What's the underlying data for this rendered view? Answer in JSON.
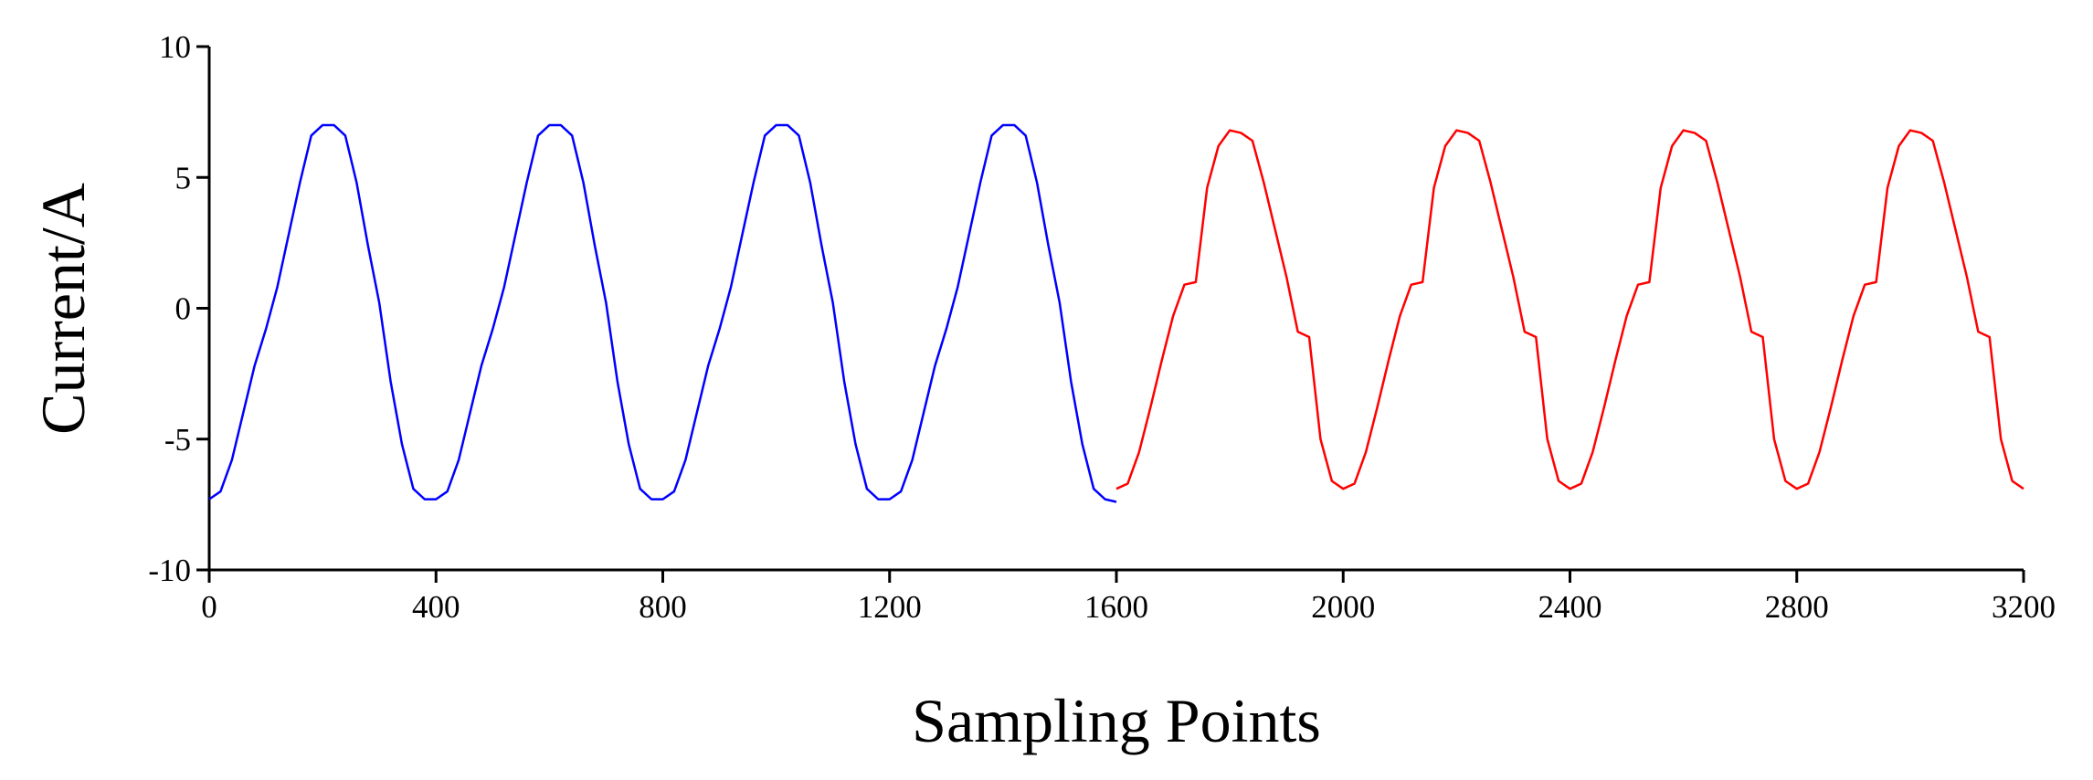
{
  "chart_data": {
    "type": "line",
    "xlabel": "Sampling Points",
    "ylabel": "Current/A",
    "xlim": [
      0,
      3200
    ],
    "xticks": [
      0,
      400,
      800,
      1200,
      1600,
      2000,
      2400,
      2800,
      3200
    ],
    "ylim": [
      -10,
      10
    ],
    "yticks": [
      -10,
      -5,
      0,
      5,
      10
    ],
    "series": [
      {
        "color": "#0000ff",
        "x": [
          0,
          20,
          40,
          60,
          80,
          100,
          120,
          140,
          160,
          180,
          200,
          220,
          240,
          260,
          280,
          300,
          320,
          340,
          360,
          380,
          400,
          420,
          440,
          460,
          480,
          500,
          520,
          540,
          560,
          580,
          600,
          620,
          640,
          660,
          680,
          700,
          720,
          740,
          760,
          780,
          800,
          820,
          840,
          860,
          880,
          900,
          920,
          940,
          960,
          980,
          1000,
          1020,
          1040,
          1060,
          1080,
          1100,
          1120,
          1140,
          1160,
          1180,
          1200,
          1220,
          1240,
          1260,
          1280,
          1300,
          1320,
          1340,
          1360,
          1380,
          1400,
          1420,
          1440,
          1460,
          1480,
          1500,
          1520,
          1540,
          1560,
          1580,
          1600
        ],
        "values": [
          -7.3,
          -7.0,
          -5.8,
          -4.0,
          -2.2,
          -0.8,
          0.8,
          2.8,
          4.8,
          6.6,
          7.0,
          7.0,
          6.6,
          4.8,
          2.4,
          0.2,
          -2.8,
          -5.2,
          -6.9,
          -7.3,
          -7.3,
          -7.0,
          -5.8,
          -4.0,
          -2.2,
          -0.8,
          0.8,
          2.8,
          4.8,
          6.6,
          7.0,
          7.0,
          6.6,
          4.8,
          2.4,
          0.2,
          -2.8,
          -5.2,
          -6.9,
          -7.3,
          -7.3,
          -7.0,
          -5.8,
          -4.0,
          -2.2,
          -0.8,
          0.8,
          2.8,
          4.8,
          6.6,
          7.0,
          7.0,
          6.6,
          4.8,
          2.4,
          0.2,
          -2.8,
          -5.2,
          -6.9,
          -7.3,
          -7.3,
          -7.0,
          -5.8,
          -4.0,
          -2.2,
          -0.8,
          0.8,
          2.8,
          4.8,
          6.6,
          7.0,
          7.0,
          6.6,
          4.8,
          2.4,
          0.2,
          -2.8,
          -5.2,
          -6.9,
          -7.3,
          -7.4
        ]
      },
      {
        "color": "#ff0000",
        "x": [
          1600,
          1620,
          1640,
          1660,
          1680,
          1700,
          1720,
          1740,
          1760,
          1780,
          1800,
          1820,
          1840,
          1860,
          1880,
          1900,
          1920,
          1940,
          1960,
          1980,
          2000,
          2020,
          2040,
          2060,
          2080,
          2100,
          2120,
          2140,
          2160,
          2180,
          2200,
          2220,
          2240,
          2260,
          2280,
          2300,
          2320,
          2340,
          2360,
          2380,
          2400,
          2420,
          2440,
          2460,
          2480,
          2500,
          2520,
          2540,
          2560,
          2580,
          2600,
          2620,
          2640,
          2660,
          2680,
          2700,
          2720,
          2740,
          2760,
          2780,
          2800,
          2820,
          2840,
          2860,
          2880,
          2900,
          2920,
          2940,
          2960,
          2980,
          3000,
          3020,
          3040,
          3060,
          3080,
          3100,
          3120,
          3140,
          3160,
          3180,
          3200
        ],
        "values": [
          -6.9,
          -6.7,
          -5.5,
          -3.8,
          -2.0,
          -0.3,
          0.9,
          1.0,
          4.6,
          6.2,
          6.8,
          6.7,
          6.4,
          4.8,
          3.0,
          1.2,
          -0.9,
          -1.1,
          -5.0,
          -6.6,
          -6.9,
          -6.7,
          -5.5,
          -3.8,
          -2.0,
          -0.3,
          0.9,
          1.0,
          4.6,
          6.2,
          6.8,
          6.7,
          6.4,
          4.8,
          3.0,
          1.2,
          -0.9,
          -1.1,
          -5.0,
          -6.6,
          -6.9,
          -6.7,
          -5.5,
          -3.8,
          -2.0,
          -0.3,
          0.9,
          1.0,
          4.6,
          6.2,
          6.8,
          6.7,
          6.4,
          4.8,
          3.0,
          1.2,
          -0.9,
          -1.1,
          -5.0,
          -6.6,
          -6.9,
          -6.7,
          -5.5,
          -3.8,
          -2.0,
          -0.3,
          0.9,
          1.0,
          4.6,
          6.2,
          6.8,
          6.7,
          6.4,
          4.8,
          3.0,
          1.2,
          -0.9,
          -1.1,
          -5.0,
          -6.6,
          -6.9
        ]
      }
    ]
  }
}
